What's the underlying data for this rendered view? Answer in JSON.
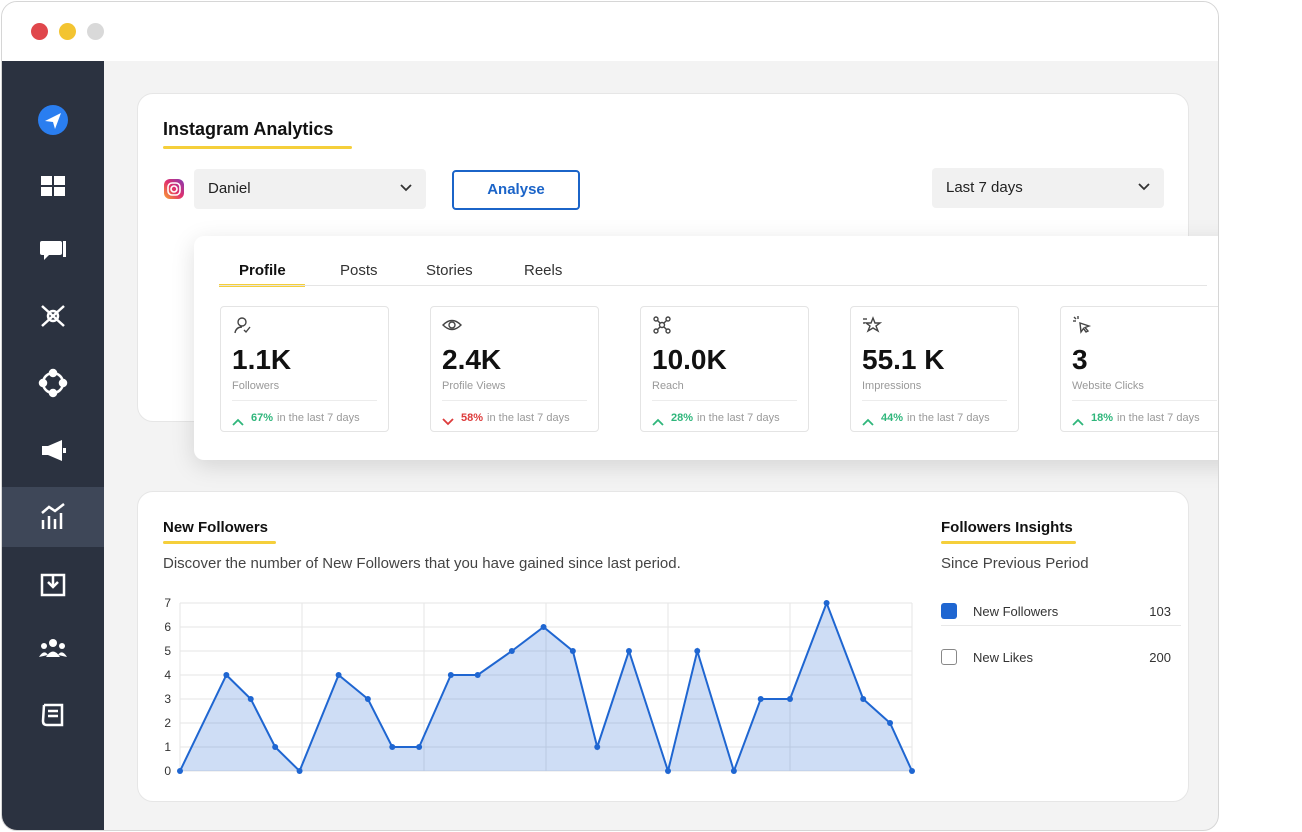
{
  "header": {
    "title": "Instagram Analytics",
    "account": "Daniel",
    "button": "Analyse",
    "period": "Last 7 days"
  },
  "tabs": [
    "Profile",
    "Posts",
    "Stories",
    "Reels"
  ],
  "stats": [
    {
      "value": "1.1K",
      "label": "Followers",
      "change": "67%",
      "direction": "up",
      "note": "in the last 7 days"
    },
    {
      "value": "2.4K",
      "label": "Profile Views",
      "change": "58%",
      "direction": "down",
      "note": "in the last 7 days"
    },
    {
      "value": "10.0K",
      "label": "Reach",
      "change": "28%",
      "direction": "up",
      "note": "in the last 7 days"
    },
    {
      "value": "55.1 K",
      "label": "Impressions",
      "change": "44%",
      "direction": "up",
      "note": "in the last 7 days"
    },
    {
      "value": "3",
      "label": "Website Clicks",
      "change": "18%",
      "direction": "up",
      "note": "in the last 7 days"
    }
  ],
  "chart_data": {
    "type": "area",
    "title": "New Followers",
    "subtitle": "Discover the number of New Followers that you have gained since last period.",
    "x": [
      0,
      1.9,
      2.9,
      3.9,
      4.9,
      6.5,
      7.7,
      8.7,
      9.8,
      11.1,
      12.2,
      13.6,
      14.9,
      16.1,
      17.1,
      18.4,
      20,
      21.2,
      22.7,
      23.8,
      25,
      26.5,
      28,
      29.1,
      30
    ],
    "values": [
      0,
      4,
      3,
      1,
      0,
      4,
      3,
      1,
      1,
      4,
      4,
      5,
      6,
      5,
      1,
      5,
      0,
      5,
      0,
      3,
      3,
      7,
      3,
      2,
      0
    ],
    "color": "#1f66d1",
    "xlim": [
      0,
      30
    ],
    "xticks": [
      0,
      5,
      10,
      15,
      20,
      25,
      30
    ],
    "ylim": [
      0,
      7
    ],
    "yticks": [
      0,
      1,
      2,
      3,
      4,
      5,
      6,
      7
    ],
    "grid": true
  },
  "insights": {
    "title": "Followers Insights",
    "subtitle": "Since Previous Period",
    "items": [
      {
        "name": "New Followers",
        "value": 103,
        "checked": true
      },
      {
        "name": "New Likes",
        "value": 200,
        "checked": false
      }
    ]
  }
}
